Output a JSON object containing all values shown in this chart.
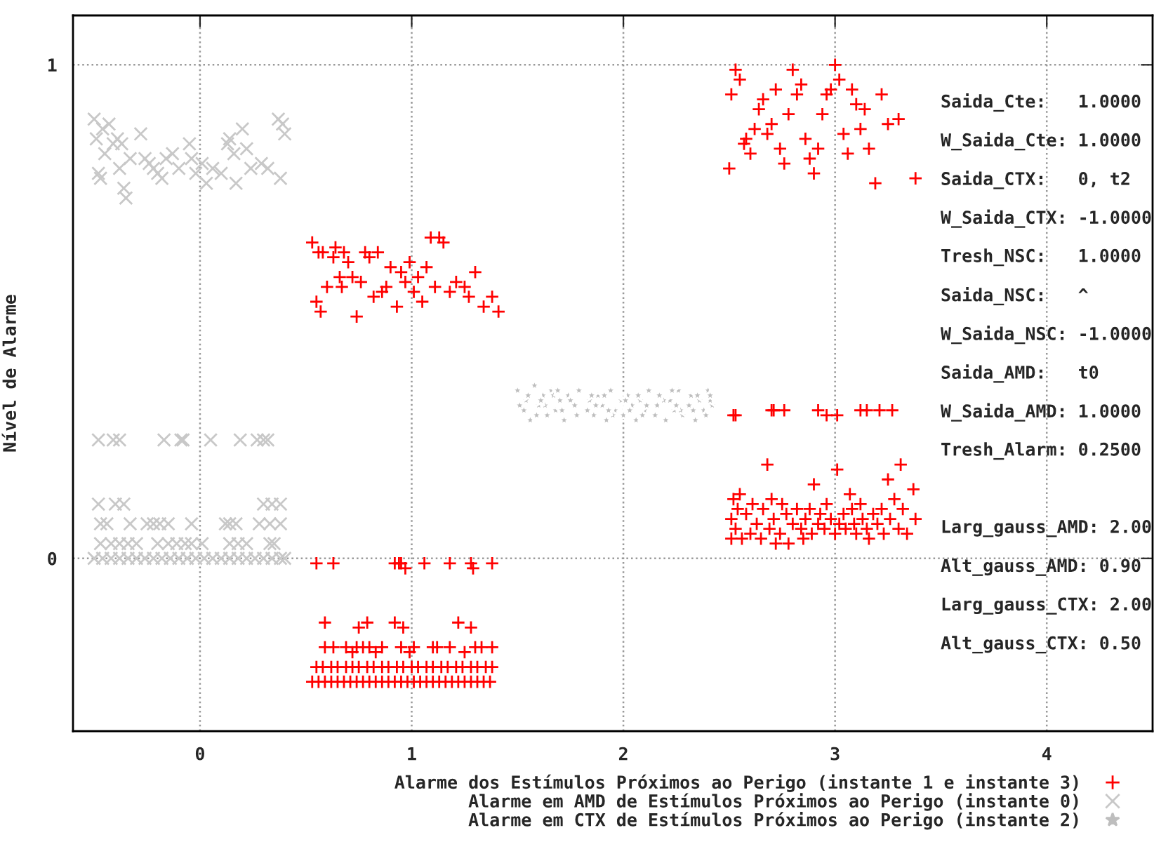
{
  "chart_data": {
    "type": "scatter",
    "ylabel": "Nível de Alarme",
    "xlim": [
      -0.6,
      4.5
    ],
    "ylim": [
      -0.35,
      1.1
    ],
    "xticks": [
      0,
      1,
      2,
      3,
      4
    ],
    "yticks": [
      0,
      1
    ],
    "grid": true,
    "legend": "bottom",
    "annotations": [
      "Saida_Cte:   1.0000",
      "W_Saida_Cte: 1.0000",
      "Saida_CTX:   0, t2",
      "W_Saida_CTX: -1.0000",
      "Tresh_NSC:   1.0000",
      "Saida_NSC:   ^",
      "W_Saida_NSC: -1.0000",
      "Saida_AMD:   t0",
      "W_Saida_AMD: 1.0000",
      "Tresh_Alarm: 0.2500",
      "Larg_gauss_AMD: 2.00",
      "Alt_gauss_AMD: 0.90",
      "Larg_gauss_CTX: 2.00",
      "Alt_gauss_CTX: 0.50"
    ],
    "series": [
      {
        "name": "Alarme dos Estímulos Próximos ao Perigo (instante 1 e instante 3)",
        "color": "#ff0000",
        "marker": "cross",
        "x": [
          0.53,
          0.55,
          0.56,
          0.57,
          0.58,
          0.6,
          0.63,
          0.64,
          0.66,
          0.67,
          0.68,
          0.7,
          0.72,
          0.74,
          0.76,
          0.78,
          0.8,
          0.82,
          0.84,
          0.86,
          0.88,
          0.9,
          0.93,
          0.95,
          0.97,
          0.99,
          1.01,
          1.03,
          1.05,
          1.07,
          1.09,
          1.11,
          1.13,
          1.15,
          1.18,
          1.21,
          1.25,
          1.27,
          1.3,
          1.34,
          1.38,
          1.41,
          2.5,
          2.51,
          2.53,
          2.55,
          2.57,
          2.58,
          2.6,
          2.62,
          2.64,
          2.66,
          2.68,
          2.7,
          2.72,
          2.74,
          2.76,
          2.78,
          2.8,
          2.82,
          2.84,
          2.86,
          2.88,
          2.9,
          2.92,
          2.94,
          2.96,
          2.98,
          3.0,
          3.02,
          3.04,
          3.06,
          3.08,
          3.1,
          3.12,
          3.14,
          3.16,
          3.19,
          3.22,
          3.25,
          3.3,
          3.38,
          2.52,
          2.53,
          2.7,
          2.71,
          2.76,
          2.92,
          2.96,
          3.01,
          3.12,
          3.15,
          3.21,
          3.27,
          2.51,
          2.51,
          2.52,
          2.53,
          2.54,
          2.55,
          2.56,
          2.58,
          2.6,
          2.61,
          2.63,
          2.65,
          2.66,
          2.68,
          2.69,
          2.7,
          2.71,
          2.72,
          2.74,
          2.75,
          2.77,
          2.78,
          2.8,
          2.82,
          2.84,
          2.85,
          2.86,
          2.88,
          2.89,
          2.9,
          2.92,
          2.93,
          2.95,
          2.96,
          2.98,
          3.0,
          3.01,
          3.02,
          3.04,
          3.05,
          3.07,
          3.08,
          3.09,
          3.1,
          3.12,
          3.13,
          3.15,
          3.16,
          3.18,
          3.2,
          3.22,
          3.23,
          3.25,
          3.26,
          3.28,
          3.3,
          3.31,
          3.32,
          3.34,
          3.37,
          3.38,
          0.55,
          0.63,
          0.92,
          0.94,
          0.95,
          0.97,
          1.06,
          1.18,
          1.28,
          1.29,
          1.38,
          0.59,
          0.75,
          0.79,
          0.92,
          0.96,
          1.22,
          1.28,
          0.59,
          0.63,
          0.69,
          0.72,
          0.74,
          0.77,
          0.8,
          0.83,
          0.86,
          0.95,
          0.99,
          1.01,
          1.1,
          1.12,
          1.18,
          1.25,
          1.3,
          1.33,
          1.38,
          0.55,
          0.58,
          0.62,
          0.65,
          0.69,
          0.72,
          0.75,
          0.79,
          0.82,
          0.86,
          0.89,
          0.93,
          0.96,
          1.0,
          1.03,
          1.07,
          1.1,
          1.14,
          1.17,
          1.21,
          1.24,
          1.28,
          1.31,
          1.35,
          1.38,
          0.53,
          0.56,
          0.59,
          0.62,
          0.65,
          0.68,
          0.71,
          0.74,
          0.77,
          0.8,
          0.83,
          0.86,
          0.89,
          0.92,
          0.95,
          0.98,
          1.01,
          1.04,
          1.07,
          1.1,
          1.13,
          1.16,
          1.19,
          1.22,
          1.25,
          1.28,
          1.31,
          1.34,
          1.37
        ],
        "values": [
          0.64,
          0.52,
          0.62,
          0.5,
          0.62,
          0.55,
          0.61,
          0.63,
          0.57,
          0.55,
          0.62,
          0.6,
          0.57,
          0.49,
          0.56,
          0.62,
          0.61,
          0.53,
          0.62,
          0.54,
          0.55,
          0.59,
          0.51,
          0.58,
          0.56,
          0.6,
          0.54,
          0.57,
          0.52,
          0.59,
          0.65,
          0.55,
          0.65,
          0.64,
          0.54,
          0.56,
          0.55,
          0.53,
          0.58,
          0.51,
          0.53,
          0.5,
          0.79,
          0.94,
          0.99,
          0.97,
          0.84,
          0.85,
          0.82,
          0.87,
          0.91,
          0.93,
          0.86,
          0.88,
          0.95,
          0.83,
          0.8,
          0.9,
          0.99,
          0.94,
          0.96,
          0.85,
          0.81,
          0.78,
          0.83,
          0.9,
          0.94,
          0.95,
          1.0,
          0.97,
          0.86,
          0.82,
          0.95,
          0.92,
          0.87,
          0.91,
          0.83,
          0.76,
          0.94,
          0.88,
          0.89,
          0.77,
          0.29,
          0.29,
          0.3,
          0.3,
          0.3,
          0.3,
          0.29,
          0.29,
          0.3,
          0.3,
          0.3,
          0.3,
          0.04,
          0.08,
          0.12,
          0.06,
          0.1,
          0.13,
          0.04,
          0.09,
          0.05,
          0.11,
          0.07,
          0.04,
          0.1,
          0.19,
          0.06,
          0.12,
          0.08,
          0.03,
          0.05,
          0.11,
          0.09,
          0.03,
          0.07,
          0.1,
          0.06,
          0.04,
          0.08,
          0.1,
          0.05,
          0.15,
          0.07,
          0.09,
          0.06,
          0.11,
          0.08,
          0.05,
          0.18,
          0.07,
          0.09,
          0.06,
          0.13,
          0.1,
          0.07,
          0.05,
          0.11,
          0.08,
          0.06,
          0.04,
          0.09,
          0.07,
          0.1,
          0.05,
          0.16,
          0.08,
          0.12,
          0.06,
          0.19,
          0.1,
          0.05,
          0.14,
          0.08,
          -0.01,
          -0.01,
          -0.01,
          -0.01,
          -0.01,
          -0.02,
          -0.01,
          -0.01,
          -0.01,
          -0.02,
          -0.01,
          -0.13,
          -0.14,
          -0.13,
          -0.13,
          -0.14,
          -0.13,
          -0.14,
          -0.18,
          -0.18,
          -0.18,
          -0.19,
          -0.18,
          -0.18,
          -0.18,
          -0.19,
          -0.18,
          -0.18,
          -0.19,
          -0.18,
          -0.18,
          -0.18,
          -0.18,
          -0.19,
          -0.18,
          -0.18,
          -0.18,
          -0.22,
          -0.22,
          -0.22,
          -0.22,
          -0.22,
          -0.22,
          -0.22,
          -0.22,
          -0.22,
          -0.22,
          -0.22,
          -0.22,
          -0.22,
          -0.22,
          -0.22,
          -0.22,
          -0.22,
          -0.22,
          -0.22,
          -0.22,
          -0.22,
          -0.22,
          -0.22,
          -0.22,
          -0.22,
          -0.25,
          -0.25,
          -0.25,
          -0.25,
          -0.25,
          -0.25,
          -0.25,
          -0.25,
          -0.25,
          -0.25,
          -0.25,
          -0.25,
          -0.25,
          -0.25,
          -0.25,
          -0.25,
          -0.25,
          -0.25,
          -0.25,
          -0.25,
          -0.25,
          -0.25,
          -0.25,
          -0.25,
          -0.25,
          -0.25,
          -0.25,
          -0.25,
          -0.25
        ]
      },
      {
        "name": "Alarme em AMD de Estímulos Próximos ao Perigo (instante 0)",
        "color": "#c8c8c8",
        "marker": "x",
        "x": [
          -0.5,
          -0.49,
          -0.48,
          -0.47,
          -0.46,
          -0.45,
          -0.43,
          -0.41,
          -0.39,
          -0.38,
          -0.37,
          -0.36,
          -0.35,
          -0.33,
          -0.28,
          -0.26,
          -0.24,
          -0.22,
          -0.2,
          -0.18,
          -0.16,
          -0.13,
          -0.1,
          -0.05,
          -0.04,
          -0.02,
          0.01,
          0.03,
          0.06,
          0.1,
          0.13,
          0.14,
          0.16,
          0.17,
          0.2,
          0.22,
          0.24,
          0.29,
          0.32,
          0.37,
          0.38,
          0.39,
          0.4,
          -0.48,
          -0.41,
          -0.38,
          -0.17,
          -0.09,
          -0.08,
          0.05,
          0.19,
          0.27,
          0.3,
          0.32,
          -0.48,
          -0.4,
          -0.36,
          0.3,
          0.34,
          0.38,
          -0.47,
          -0.44,
          -0.33,
          -0.25,
          -0.22,
          -0.19,
          -0.15,
          -0.04,
          0.12,
          0.14,
          0.17,
          0.28,
          0.33,
          0.38,
          -0.47,
          -0.42,
          -0.38,
          -0.34,
          -0.3,
          -0.2,
          -0.15,
          -0.11,
          -0.07,
          -0.04,
          0.01,
          0.14,
          0.18,
          0.22,
          0.33,
          0.35,
          -0.5,
          -0.46,
          -0.42,
          -0.38,
          -0.34,
          -0.3,
          -0.26,
          -0.22,
          -0.18,
          -0.14,
          -0.1,
          -0.06,
          -0.02,
          0.02,
          0.06,
          0.1,
          0.14,
          0.18,
          0.22,
          0.26,
          0.3,
          0.34,
          0.38,
          0.4
        ],
        "values": [
          0.89,
          0.85,
          0.78,
          0.77,
          0.87,
          0.82,
          0.88,
          0.84,
          0.85,
          0.79,
          0.84,
          0.75,
          0.73,
          0.81,
          0.86,
          0.81,
          0.8,
          0.79,
          0.78,
          0.77,
          0.81,
          0.82,
          0.79,
          0.84,
          0.81,
          0.78,
          0.8,
          0.76,
          0.79,
          0.78,
          0.84,
          0.85,
          0.82,
          0.76,
          0.87,
          0.83,
          0.79,
          0.8,
          0.79,
          0.89,
          0.77,
          0.88,
          0.86,
          0.24,
          0.24,
          0.24,
          0.24,
          0.24,
          0.24,
          0.24,
          0.24,
          0.24,
          0.24,
          0.24,
          0.11,
          0.11,
          0.11,
          0.11,
          0.11,
          0.11,
          0.07,
          0.07,
          0.07,
          0.07,
          0.07,
          0.07,
          0.07,
          0.07,
          0.07,
          0.07,
          0.07,
          0.07,
          0.07,
          0.07,
          0.03,
          0.03,
          0.03,
          0.03,
          0.03,
          0.03,
          0.03,
          0.03,
          0.03,
          0.03,
          0.03,
          0.03,
          0.03,
          0.03,
          0.03,
          0.03,
          0,
          0,
          0,
          0,
          0,
          0,
          0,
          0,
          0,
          0,
          0,
          0,
          0,
          0,
          0,
          0,
          0,
          0,
          0,
          0,
          0,
          0,
          0,
          0
        ]
      },
      {
        "name": "Alarme em CTX de Estímulos Próximos ao Perigo (instante 2)",
        "color": "#bebebe",
        "marker": "star",
        "x": [
          1.5,
          1.54,
          1.56,
          1.58,
          1.6,
          1.62,
          1.64,
          1.66,
          1.68,
          1.7,
          1.72,
          1.74,
          1.78,
          1.84,
          1.86,
          1.88,
          1.9,
          1.92,
          1.94,
          1.96,
          2.0,
          2.02,
          2.04,
          2.06,
          2.08,
          2.1,
          2.12,
          2.16,
          2.2,
          2.22,
          2.24,
          2.26,
          2.28,
          2.32,
          2.34,
          2.36,
          2.38,
          2.4,
          2.42,
          1.51,
          1.55,
          1.59,
          1.63,
          1.67,
          1.71,
          1.75,
          1.79,
          1.83,
          1.87,
          1.91,
          1.95,
          1.99,
          2.03,
          2.07,
          2.11,
          2.15,
          2.19,
          2.23,
          2.27,
          2.31,
          2.35,
          2.39,
          2.41,
          1.53,
          1.61,
          1.69,
          1.77,
          1.85,
          1.93,
          2.01,
          2.09,
          2.17,
          2.25,
          2.33,
          2.41
        ],
        "values": [
          0.34,
          0.32,
          0.28,
          0.35,
          0.31,
          0.33,
          0.29,
          0.34,
          0.3,
          0.32,
          0.28,
          0.33,
          0.29,
          0.32,
          0.29,
          0.33,
          0.31,
          0.28,
          0.34,
          0.3,
          0.29,
          0.33,
          0.31,
          0.28,
          0.32,
          0.3,
          0.34,
          0.31,
          0.28,
          0.32,
          0.3,
          0.34,
          0.29,
          0.33,
          0.28,
          0.32,
          0.3,
          0.34,
          0.31,
          0.31,
          0.33,
          0.29,
          0.31,
          0.33,
          0.3,
          0.32,
          0.34,
          0.3,
          0.31,
          0.33,
          0.29,
          0.32,
          0.3,
          0.33,
          0.31,
          0.29,
          0.32,
          0.34,
          0.3,
          0.31,
          0.33,
          0.29,
          0.32,
          0.3,
          0.32,
          0.34,
          0.31,
          0.33,
          0.3,
          0.32,
          0.29,
          0.33,
          0.31,
          0.3,
          0.33
        ]
      }
    ]
  }
}
